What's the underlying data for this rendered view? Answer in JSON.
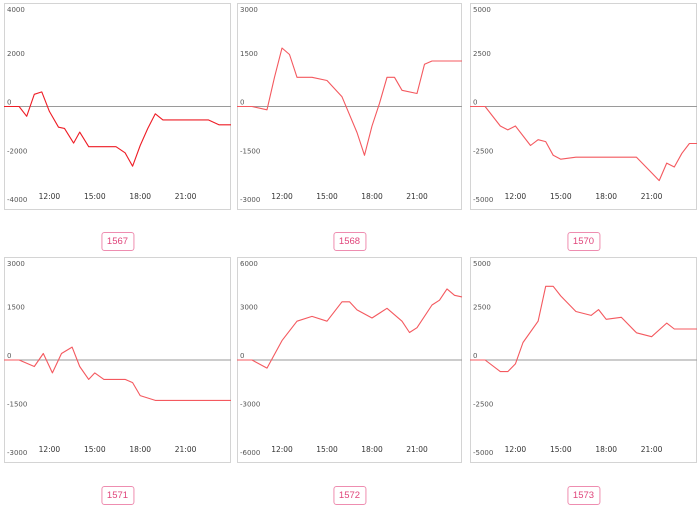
{
  "chart_data": [
    {
      "type": "line",
      "label": "1567",
      "line_color": "#ee1c25",
      "ylim": [
        -4000,
        4000
      ],
      "yticks": [
        "4000",
        "2000",
        "0",
        "-2000",
        "-4000"
      ],
      "ytick_values": [
        4000,
        2000,
        0,
        -2000,
        -4000
      ],
      "xlim": [
        9,
        24
      ],
      "xticks": [
        "12:00",
        "15:00",
        "18:00",
        "21:00"
      ],
      "xtick_values": [
        12,
        15,
        18,
        21
      ],
      "x": [
        9,
        10,
        10.5,
        11,
        11.5,
        12,
        12.6,
        13,
        13.6,
        14,
        14.6,
        15.5,
        16.4,
        17,
        17.5,
        18,
        18.5,
        19,
        19.5,
        20,
        21,
        22.5,
        23.2,
        24
      ],
      "y": [
        0,
        0,
        -400,
        500,
        600,
        -200,
        -850,
        -900,
        -1500,
        -1050,
        -1650,
        -1650,
        -1650,
        -1900,
        -2450,
        -1600,
        -900,
        -300,
        -550,
        -550,
        -550,
        -550,
        -750,
        -750
      ]
    },
    {
      "type": "line",
      "label": "1568",
      "line_color": "#f4595f",
      "ylim": [
        -3000,
        3000
      ],
      "yticks": [
        "3000",
        "1500",
        "0",
        "-1500",
        "-3000"
      ],
      "ytick_values": [
        3000,
        1500,
        0,
        -1500,
        -3000
      ],
      "xlim": [
        9,
        24
      ],
      "xticks": [
        "12:00",
        "15:00",
        "18:00",
        "21:00"
      ],
      "xtick_values": [
        12,
        15,
        18,
        21
      ],
      "x": [
        9,
        10,
        11,
        11.5,
        12,
        12.5,
        13,
        14,
        15,
        16,
        17,
        17.5,
        18,
        18.5,
        19,
        19.5,
        20,
        21,
        21.5,
        22,
        24
      ],
      "y": [
        0,
        0,
        -100,
        900,
        1800,
        1600,
        900,
        900,
        800,
        300,
        -800,
        -1500,
        -600,
        100,
        900,
        900,
        500,
        400,
        1300,
        1400,
        1400
      ]
    },
    {
      "type": "line",
      "label": "1570",
      "line_color": "#f4595f",
      "ylim": [
        -5000,
        5000
      ],
      "yticks": [
        "5000",
        "2500",
        "0",
        "-2500",
        "-5000"
      ],
      "ytick_values": [
        5000,
        2500,
        0,
        -2500,
        -5000
      ],
      "xlim": [
        9,
        24
      ],
      "xticks": [
        "12:00",
        "15:00",
        "18:00",
        "21:00"
      ],
      "xtick_values": [
        12,
        15,
        18,
        21
      ],
      "x": [
        9,
        10,
        11,
        11.5,
        12,
        13,
        13.5,
        14,
        14.5,
        15,
        16,
        17,
        18,
        19,
        20,
        21,
        21.5,
        22,
        22.5,
        23,
        23.5,
        24
      ],
      "y": [
        0,
        0,
        -1000,
        -1200,
        -1000,
        -2000,
        -1700,
        -1800,
        -2500,
        -2700,
        -2600,
        -2600,
        -2600,
        -2600,
        -2600,
        -3400,
        -3800,
        -2900,
        -3100,
        -2400,
        -1900,
        -1900
      ]
    },
    {
      "type": "line",
      "label": "1571",
      "line_color": "#f4595f",
      "ylim": [
        -3000,
        3000
      ],
      "yticks": [
        "3000",
        "1500",
        "0",
        "-1500",
        "-3000"
      ],
      "ytick_values": [
        3000,
        1500,
        0,
        -1500,
        -3000
      ],
      "xlim": [
        9,
        24
      ],
      "xticks": [
        "12:00",
        "15:00",
        "18:00",
        "21:00"
      ],
      "xtick_values": [
        12,
        15,
        18,
        21
      ],
      "x": [
        9,
        10,
        11,
        11.6,
        12.2,
        12.8,
        13.5,
        14,
        14.6,
        15,
        15.6,
        17,
        17.5,
        18,
        19,
        24
      ],
      "y": [
        0,
        0,
        -200,
        200,
        -400,
        200,
        400,
        -200,
        -600,
        -400,
        -600,
        -600,
        -700,
        -1100,
        -1250,
        -1250
      ]
    },
    {
      "type": "line",
      "label": "1572",
      "line_color": "#f4595f",
      "ylim": [
        -6000,
        6000
      ],
      "yticks": [
        "6000",
        "3000",
        "0",
        "-3000",
        "-6000"
      ],
      "ytick_values": [
        6000,
        3000,
        0,
        -3000,
        -6000
      ],
      "xlim": [
        9,
        24
      ],
      "xticks": [
        "12:00",
        "15:00",
        "18:00",
        "21:00"
      ],
      "xtick_values": [
        12,
        15,
        18,
        21
      ],
      "x": [
        9,
        10,
        11,
        12,
        13,
        14,
        15,
        16,
        16.5,
        17,
        18,
        19,
        20,
        20.5,
        21,
        22,
        22.5,
        23,
        23.5,
        24
      ],
      "y": [
        0,
        0,
        -500,
        1200,
        2400,
        2700,
        2400,
        3600,
        3600,
        3100,
        2600,
        3200,
        2400,
        1700,
        2000,
        3400,
        3700,
        4400,
        4000,
        3900
      ]
    },
    {
      "type": "line",
      "label": "1573",
      "line_color": "#f4595f",
      "ylim": [
        -5000,
        5000
      ],
      "yticks": [
        "5000",
        "2500",
        "0",
        "-2500",
        "-5000"
      ],
      "ytick_values": [
        5000,
        2500,
        0,
        -2500,
        -5000
      ],
      "xlim": [
        9,
        24
      ],
      "xticks": [
        "12:00",
        "15:00",
        "18:00",
        "21:00"
      ],
      "xtick_values": [
        12,
        15,
        18,
        21
      ],
      "x": [
        9,
        10,
        11,
        11.5,
        12,
        12.5,
        13.5,
        14,
        14.5,
        15,
        16,
        17,
        17.5,
        18,
        19,
        20,
        21,
        22,
        22.5,
        24
      ],
      "y": [
        0,
        0,
        -600,
        -600,
        -200,
        900,
        2000,
        3800,
        3800,
        3300,
        2500,
        2300,
        2600,
        2100,
        2200,
        1400,
        1200,
        1900,
        1600,
        1600
      ]
    }
  ]
}
